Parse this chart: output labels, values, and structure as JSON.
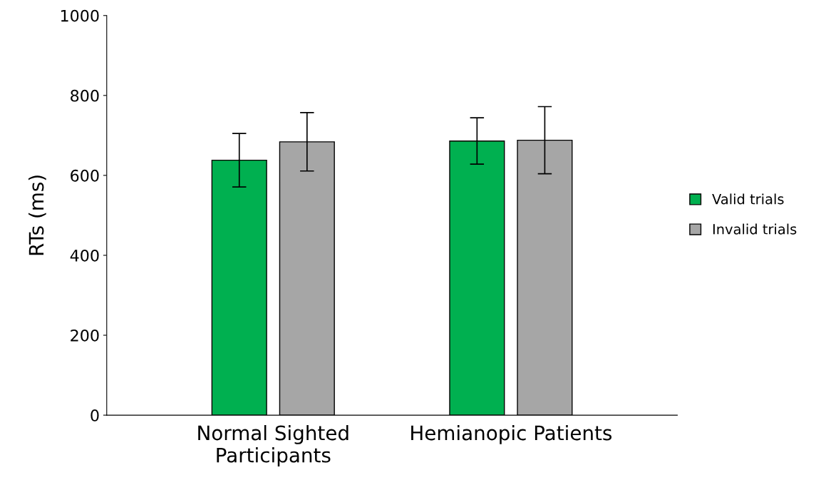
{
  "chart_data": {
    "type": "bar",
    "ylabel": "RTs (ms)",
    "categories": [
      "Normal Sighted\nParticipants",
      "Hemianopic Patients"
    ],
    "series": [
      {
        "name": "Valid trials",
        "color": "#00b050",
        "values": [
          638,
          686
        ],
        "errors": [
          67,
          58
        ]
      },
      {
        "name": "Invalid trials",
        "color": "#a6a6a6",
        "values": [
          684,
          688
        ],
        "errors": [
          73,
          84
        ]
      }
    ],
    "ylim": [
      0,
      1000
    ],
    "yticks": [
      0,
      200,
      400,
      600,
      800,
      1000
    ],
    "grid": false,
    "legend": "right"
  }
}
